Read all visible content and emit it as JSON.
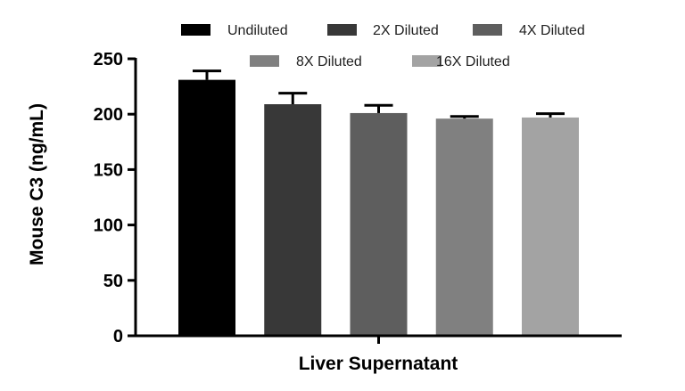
{
  "chart_data": {
    "type": "bar",
    "title": "",
    "xlabel": "Liver Supernatant",
    "ylabel": "Mouse C3 (ng/mL)",
    "ylim": [
      0,
      250
    ],
    "yticks": [
      0,
      50,
      100,
      150,
      200,
      250
    ],
    "grid": false,
    "legend_position": "top",
    "series": [
      {
        "name": "Undiluted",
        "value": 231,
        "error": 8,
        "color": "#000000"
      },
      {
        "name": "2X Diluted",
        "value": 209,
        "error": 10,
        "color": "#383838"
      },
      {
        "name": "4X Diluted",
        "value": 201,
        "error": 7,
        "color": "#5e5e5e"
      },
      {
        "name": "8X Diluted",
        "value": 196,
        "error": 2,
        "color": "#808080"
      },
      {
        "name": "16X Diluted",
        "value": 197,
        "error": 3.5,
        "color": "#a3a3a3"
      }
    ]
  }
}
